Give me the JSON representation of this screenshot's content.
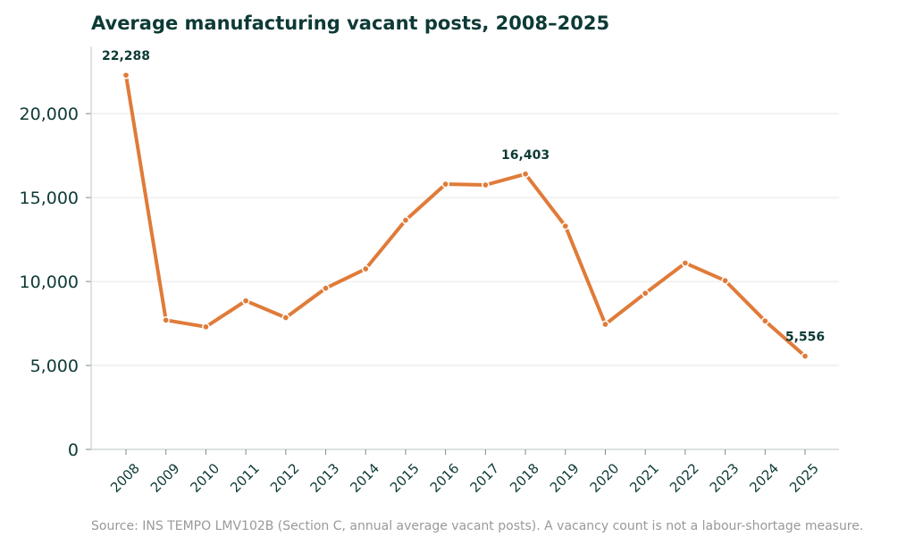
{
  "chart_data": {
    "type": "line",
    "title": "Average manufacturing vacant posts, 2008–2025",
    "xlabel": "",
    "ylabel": "",
    "categories": [
      "2008",
      "2009",
      "2010",
      "2011",
      "2012",
      "2013",
      "2014",
      "2015",
      "2016",
      "2017",
      "2018",
      "2019",
      "2020",
      "2021",
      "2022",
      "2023",
      "2024",
      "2025"
    ],
    "series": [
      {
        "values": [
          22288,
          7700,
          7300,
          8850,
          7850,
          9600,
          10750,
          13650,
          15800,
          15750,
          16403,
          13300,
          7450,
          9300,
          11100,
          10050,
          7650,
          5556
        ]
      }
    ],
    "ylim": [
      0,
      24000
    ],
    "yticks": [
      0,
      5000,
      10000,
      15000,
      20000
    ],
    "ytick_labels": [
      "0",
      "5,000",
      "10,000",
      "15,000",
      "20,000"
    ],
    "annotations": [
      {
        "category": "2008",
        "value": 22288,
        "label": "22,288"
      },
      {
        "category": "2018",
        "value": 16403,
        "label": "16,403"
      },
      {
        "category": "2025",
        "value": 5556,
        "label": "5,556"
      }
    ],
    "grid": "horizontal",
    "line_color": "#e07b39",
    "text_color": "#0d3a36",
    "source": "Source: INS TEMPO LMV102B (Section C, annual average vacant posts). A vacancy count is not a labour-shortage measure."
  }
}
